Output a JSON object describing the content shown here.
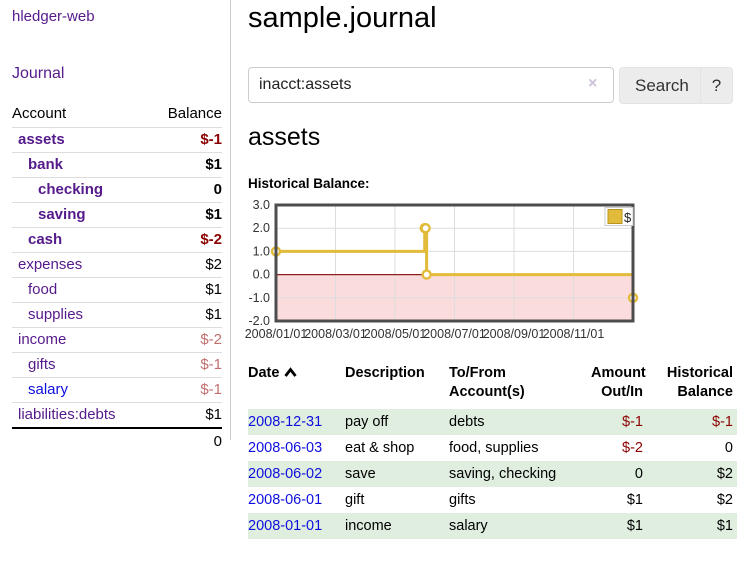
{
  "colors": {
    "link_purple": "#551a8b",
    "link_blue": "#0f0fdd",
    "negative_strong": "#8b0000",
    "negative_soft": "#c0706e",
    "row_stripe_green": "#e0eedf",
    "button_gray": "#ececec",
    "chart_line_yellow": "#e2bb3a",
    "chart_negative_fill": "#fadcdc",
    "chart_zero_line": "#8e1f1f"
  },
  "sidebar": {
    "brand": "hledger-web",
    "journal_label": "Journal",
    "accounts_table": {
      "headers": [
        "Account",
        "Balance"
      ],
      "rows": [
        {
          "name": "assets",
          "indent": 1,
          "bold": true,
          "balance": "$-1",
          "balance_style": "neg-strong"
        },
        {
          "name": "bank",
          "indent": 2,
          "bold": true,
          "balance": "$1",
          "balance_style": "pos"
        },
        {
          "name": "checking",
          "indent": 3,
          "bold": true,
          "balance": "0",
          "balance_style": "pos"
        },
        {
          "name": "saving",
          "indent": 3,
          "bold": true,
          "balance": "$1",
          "balance_style": "pos"
        },
        {
          "name": "cash",
          "indent": 2,
          "bold": true,
          "balance": "$-2",
          "balance_style": "neg-strong"
        },
        {
          "name": "expenses",
          "indent": 1,
          "bold": false,
          "balance": "$2",
          "balance_style": "pos"
        },
        {
          "name": "food",
          "indent": 2,
          "bold": false,
          "balance": "$1",
          "balance_style": "pos"
        },
        {
          "name": "supplies",
          "indent": 2,
          "bold": false,
          "balance": "$1",
          "balance_style": "pos"
        },
        {
          "name": "income",
          "indent": 1,
          "bold": false,
          "balance": "$-2",
          "balance_style": "neg-soft"
        },
        {
          "name": "gifts",
          "indent": 2,
          "bold": false,
          "balance": "$-1",
          "balance_style": "neg-soft"
        },
        {
          "name": "salary",
          "indent": 2,
          "bold": false,
          "balance": "$-1",
          "balance_style": "neg-soft",
          "link_color": "#0f0fdd"
        },
        {
          "name": "liabilities:debts",
          "indent": 1,
          "bold": false,
          "balance": "$1",
          "balance_style": "pos"
        }
      ],
      "total": "0"
    }
  },
  "main": {
    "title": "sample.journal",
    "search": {
      "value": "inacct:assets",
      "clear_icon": "×",
      "button_label": "Search",
      "help_label": "?"
    },
    "account_heading": "assets",
    "chart_label": "Historical Balance:"
  },
  "chart_data": {
    "type": "line",
    "step": true,
    "title": "Historical Balance:",
    "series": [
      {
        "name": "$",
        "color": "#e2bb3a",
        "points": [
          [
            "2008-01-01",
            1
          ],
          [
            "2008-06-01",
            2
          ],
          [
            "2008-06-02",
            2
          ],
          [
            "2008-06-03",
            0
          ],
          [
            "2008-12-31",
            -1
          ]
        ]
      }
    ],
    "x_range": [
      "2008-01-01",
      "2008-12-31"
    ],
    "x_tick_labels": [
      "2008/01/01",
      "2008/03/01",
      "2008/05/01",
      "2008/07/01",
      "2008/09/01",
      "2008/11/01"
    ],
    "x_gridline_count": 7,
    "y_ticks": [
      3.0,
      2.0,
      1.0,
      0.0,
      -1.0,
      -2.0
    ],
    "y_tick_labels": [
      "3.0",
      "2.0",
      "1.0",
      "0.0",
      "-1.0",
      "-2.0"
    ],
    "ylim": [
      -2,
      3
    ],
    "grid": true,
    "negative_region_fill": "#fadcdc",
    "zero_line_color": "#8e1f1f",
    "legend": {
      "label": "$",
      "position": "top-right"
    }
  },
  "transactions": {
    "headers": [
      {
        "line1": "Date",
        "sort": "asc",
        "align": "left"
      },
      {
        "line1": "Description",
        "align": "left"
      },
      {
        "line1": "To/From",
        "line2": "Account(s)",
        "align": "left"
      },
      {
        "line1": "Amount",
        "line2": "Out/In",
        "align": "right",
        "cls": "c-amt"
      },
      {
        "line1": "Historical",
        "line2": "Balance",
        "align": "right",
        "cls": "c-bal"
      }
    ],
    "rows": [
      {
        "date": "2008-12-31",
        "description": "pay off",
        "accounts": "debts",
        "amount": "$-1",
        "amount_neg": true,
        "balance": "$-1",
        "balance_neg": true,
        "shaded": true
      },
      {
        "date": "2008-06-03",
        "description": "eat & shop",
        "accounts": "food, supplies",
        "amount": "$-2",
        "amount_neg": true,
        "balance": "0",
        "balance_neg": false,
        "shaded": false
      },
      {
        "date": "2008-06-02",
        "description": "save",
        "accounts": "saving, checking",
        "amount": "0",
        "amount_neg": false,
        "balance": "$2",
        "balance_neg": false,
        "shaded": true
      },
      {
        "date": "2008-06-01",
        "description": "gift",
        "accounts": "gifts",
        "amount": "$1",
        "amount_neg": false,
        "balance": "$2",
        "balance_neg": false,
        "shaded": false
      },
      {
        "date": "2008-01-01",
        "description": "income",
        "accounts": "salary",
        "amount": "$1",
        "amount_neg": false,
        "balance": "$1",
        "balance_neg": false,
        "shaded": true
      }
    ]
  }
}
